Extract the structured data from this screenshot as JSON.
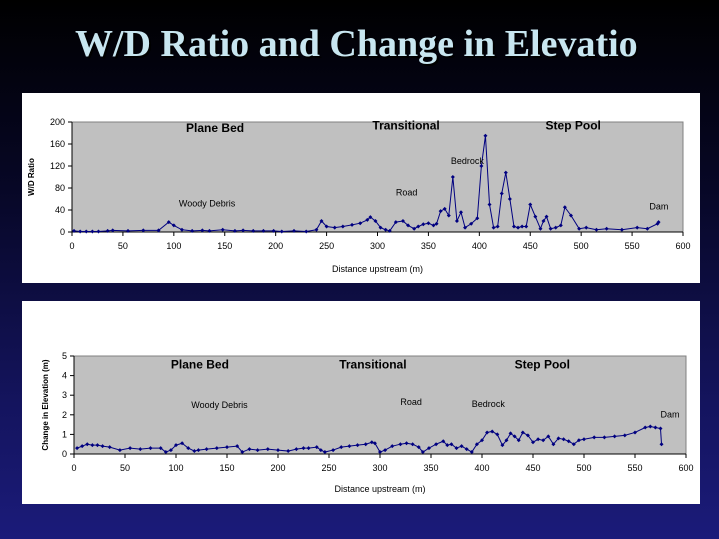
{
  "slide": {
    "title": "W/D Ratio and Change in Elevatio"
  },
  "chart_data": [
    {
      "type": "line",
      "xlabel": "Distance upstream (m)",
      "ylabel": "W/D Ratio",
      "xlim": [
        0,
        600
      ],
      "ylim": [
        0,
        200
      ],
      "xticks": [
        0,
        50,
        100,
        150,
        200,
        250,
        300,
        350,
        400,
        450,
        500,
        550,
        600
      ],
      "yticks": [
        0,
        40,
        80,
        120,
        160,
        200
      ],
      "grid": false,
      "plot_background": "#c0c0c0",
      "line_color": "#000080",
      "annotations": [
        {
          "text": "Plane Bed",
          "x": 112,
          "y": 182,
          "bold": true
        },
        {
          "text": "Transitional",
          "x": 295,
          "y": 186,
          "bold": true
        },
        {
          "text": "Step Pool",
          "x": 465,
          "y": 186,
          "bold": true
        },
        {
          "text": "Bedrock",
          "x": 372,
          "y": 124,
          "bold": false
        },
        {
          "text": "Road",
          "x": 318,
          "y": 66,
          "bold": false
        },
        {
          "text": "Woody Debris",
          "x": 105,
          "y": 46,
          "bold": false
        },
        {
          "text": "Dam",
          "x": 567,
          "y": 41,
          "bold": false
        }
      ],
      "series": [
        {
          "x": [
            2,
            8,
            14,
            20,
            26,
            35,
            40,
            55,
            70,
            85,
            95,
            100,
            108,
            118,
            128,
            135,
            148,
            160,
            168,
            178,
            188,
            198,
            206,
            218,
            230,
            240,
            245,
            250,
            258,
            266,
            275,
            283,
            290,
            293,
            298,
            303,
            308,
            312,
            318,
            325,
            330,
            336,
            340,
            345,
            350,
            355,
            358,
            362,
            366,
            370,
            374,
            378,
            382,
            386,
            392,
            398,
            402,
            406,
            410,
            414,
            418,
            422,
            426,
            430,
            434,
            438,
            442,
            446,
            450,
            455,
            460,
            463,
            466,
            470,
            475,
            480,
            484,
            490,
            498,
            505,
            515,
            525,
            540,
            555,
            565,
            575,
            576
          ],
          "y": [
            2,
            1,
            1,
            1,
            1,
            2,
            3,
            2,
            3,
            3,
            18,
            12,
            4,
            2,
            3,
            2,
            4,
            2,
            3,
            2,
            2,
            2,
            1,
            2,
            1,
            4,
            20,
            10,
            8,
            10,
            13,
            16,
            22,
            27,
            20,
            8,
            4,
            2,
            18,
            20,
            12,
            6,
            10,
            14,
            16,
            12,
            15,
            38,
            42,
            30,
            100,
            20,
            36,
            8,
            15,
            25,
            120,
            175,
            50,
            8,
            10,
            70,
            108,
            60,
            10,
            8,
            10,
            10,
            50,
            28,
            6,
            20,
            28,
            6,
            8,
            12,
            45,
            30,
            6,
            8,
            4,
            6,
            4,
            8,
            6,
            15,
            18
          ]
        }
      ]
    },
    {
      "type": "line",
      "xlabel": "Distance upstream (m)",
      "ylabel": "Change in Elevation (m)",
      "xlim": [
        0,
        600
      ],
      "ylim": [
        0,
        5
      ],
      "xticks": [
        0,
        50,
        100,
        150,
        200,
        250,
        300,
        350,
        400,
        450,
        500,
        550,
        600
      ],
      "yticks": [
        0,
        1,
        2,
        3,
        4,
        5
      ],
      "grid": false,
      "plot_background": "#c0c0c0",
      "line_color": "#000080",
      "annotations": [
        {
          "text": "Plane Bed",
          "x": 95,
          "y": 4.35,
          "bold": true
        },
        {
          "text": "Transitional",
          "x": 260,
          "y": 4.35,
          "bold": true
        },
        {
          "text": "Step Pool",
          "x": 432,
          "y": 4.35,
          "bold": true
        },
        {
          "text": "Woody Debris",
          "x": 115,
          "y": 2.35,
          "bold": false
        },
        {
          "text": "Road",
          "x": 320,
          "y": 2.5,
          "bold": false
        },
        {
          "text": "Bedrock",
          "x": 390,
          "y": 2.4,
          "bold": false
        },
        {
          "text": "Dam",
          "x": 575,
          "y": 1.85,
          "bold": false
        }
      ],
      "series": [
        {
          "x": [
            3,
            8,
            13,
            18,
            23,
            28,
            35,
            45,
            55,
            65,
            75,
            85,
            90,
            95,
            100,
            106,
            112,
            118,
            122,
            130,
            140,
            150,
            160,
            165,
            172,
            180,
            190,
            200,
            210,
            218,
            225,
            230,
            238,
            242,
            246,
            254,
            262,
            270,
            278,
            286,
            292,
            295,
            300,
            305,
            312,
            320,
            326,
            332,
            338,
            342,
            348,
            355,
            362,
            366,
            370,
            375,
            380,
            385,
            390,
            395,
            400,
            405,
            410,
            415,
            420,
            424,
            428,
            432,
            436,
            440,
            445,
            450,
            455,
            460,
            465,
            470,
            475,
            480,
            485,
            490,
            495,
            500,
            510,
            520,
            530,
            540,
            550,
            560,
            565,
            570,
            575,
            576
          ],
          "y": [
            0.3,
            0.4,
            0.5,
            0.45,
            0.45,
            0.4,
            0.35,
            0.2,
            0.3,
            0.25,
            0.3,
            0.3,
            0.1,
            0.2,
            0.45,
            0.55,
            0.3,
            0.15,
            0.2,
            0.25,
            0.3,
            0.35,
            0.4,
            0.1,
            0.25,
            0.2,
            0.25,
            0.2,
            0.15,
            0.25,
            0.3,
            0.3,
            0.35,
            0.2,
            0.1,
            0.2,
            0.35,
            0.4,
            0.45,
            0.5,
            0.6,
            0.55,
            0.1,
            0.2,
            0.4,
            0.5,
            0.55,
            0.5,
            0.35,
            0.1,
            0.3,
            0.5,
            0.65,
            0.45,
            0.5,
            0.3,
            0.4,
            0.25,
            0.1,
            0.5,
            0.7,
            1.1,
            1.15,
            1.0,
            0.45,
            0.7,
            1.05,
            0.9,
            0.7,
            1.1,
            0.95,
            0.6,
            0.75,
            0.7,
            0.9,
            0.5,
            0.8,
            0.75,
            0.65,
            0.5,
            0.7,
            0.75,
            0.85,
            0.85,
            0.9,
            0.95,
            1.1,
            1.35,
            1.4,
            1.35,
            1.3,
            0.5
          ]
        }
      ]
    }
  ]
}
